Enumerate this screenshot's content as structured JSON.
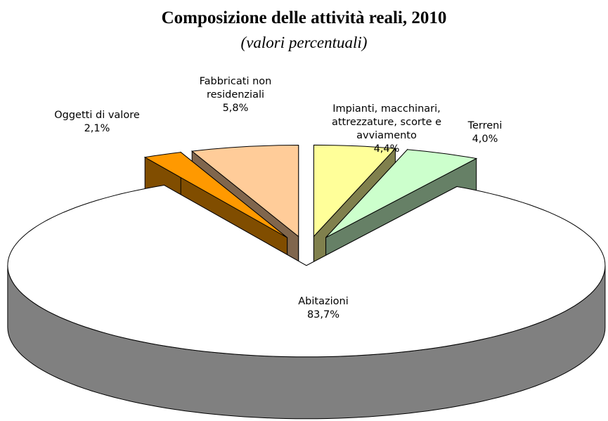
{
  "chart_data": {
    "type": "pie3d",
    "title": "Composizione delle attività reali, 2010",
    "subtitle": "(valori percentuali)",
    "categories": [
      "Impianti, macchinari, attrezzature, scorte e avviamento",
      "Terreni",
      "Abitazioni",
      "Oggetti di valore",
      "Fabbricati non residenziali"
    ],
    "values": [
      4.4,
      4.0,
      83.7,
      2.1,
      5.8
    ],
    "value_labels": [
      "4,4%",
      "4,0%",
      "83,7%",
      "2,1%",
      "5,8%"
    ],
    "colors": [
      "#ffff99",
      "#ccffcc",
      "#ffffff",
      "#ff9900",
      "#ffcc99"
    ]
  }
}
